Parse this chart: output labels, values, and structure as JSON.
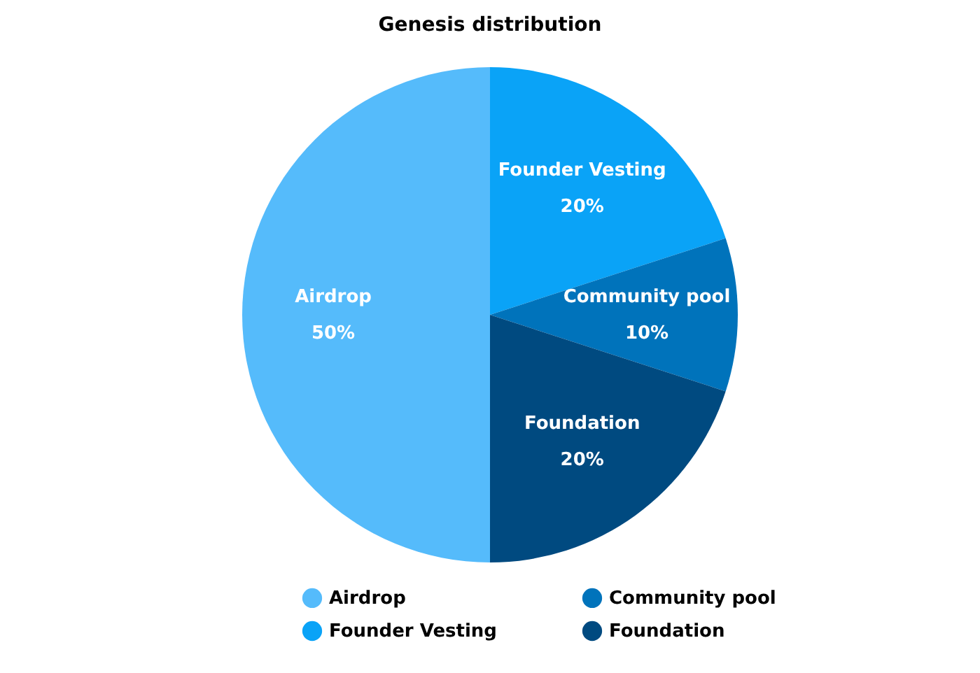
{
  "chart_data": {
    "type": "pie",
    "title": "Genesis distribution",
    "categories": [
      "Airdrop",
      "Founder Vesting",
      "Community pool",
      "Foundation"
    ],
    "values": [
      50,
      20,
      10,
      20
    ],
    "value_labels": [
      "50%",
      "20%",
      "10%",
      "20%"
    ],
    "colors": [
      "#55bbfb",
      "#0aa3f7",
      "#0073bb",
      "#004a80"
    ],
    "legend": "bottom"
  }
}
